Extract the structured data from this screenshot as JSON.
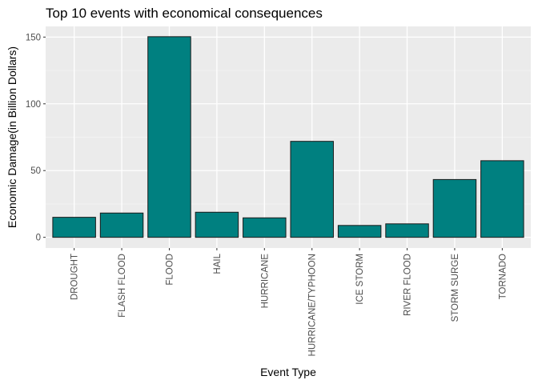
{
  "chart_data": {
    "type": "bar",
    "title": "Top 10 events with economical consequences",
    "xlabel": "Event Type",
    "ylabel": "Economic Damage(in Billion Dollars)",
    "categories": [
      "DROUGHT",
      "FLASH FLOOD",
      "FLOOD",
      "HAIL",
      "HURRICANE",
      "HURRICANE/TYPHOON",
      "ICE STORM",
      "RIVER FLOOD",
      "STORM SURGE",
      "TORNADO"
    ],
    "values": [
      15.0,
      18.2,
      150.3,
      18.8,
      14.6,
      71.9,
      8.9,
      10.1,
      43.3,
      57.4
    ],
    "ylim": [
      -8,
      158
    ],
    "yticks": [
      0,
      50,
      100,
      150
    ],
    "ytick_labels": [
      "0",
      "50",
      "100",
      "150"
    ],
    "grid": true,
    "colors": {
      "bar_fill": "#008080",
      "bar_stroke": "#1a1a1a",
      "panel_background": "#ebebeb",
      "grid_major": "#ffffff",
      "grid_minor": "#f5f5f5",
      "tick_text": "#4d4d4d"
    }
  }
}
